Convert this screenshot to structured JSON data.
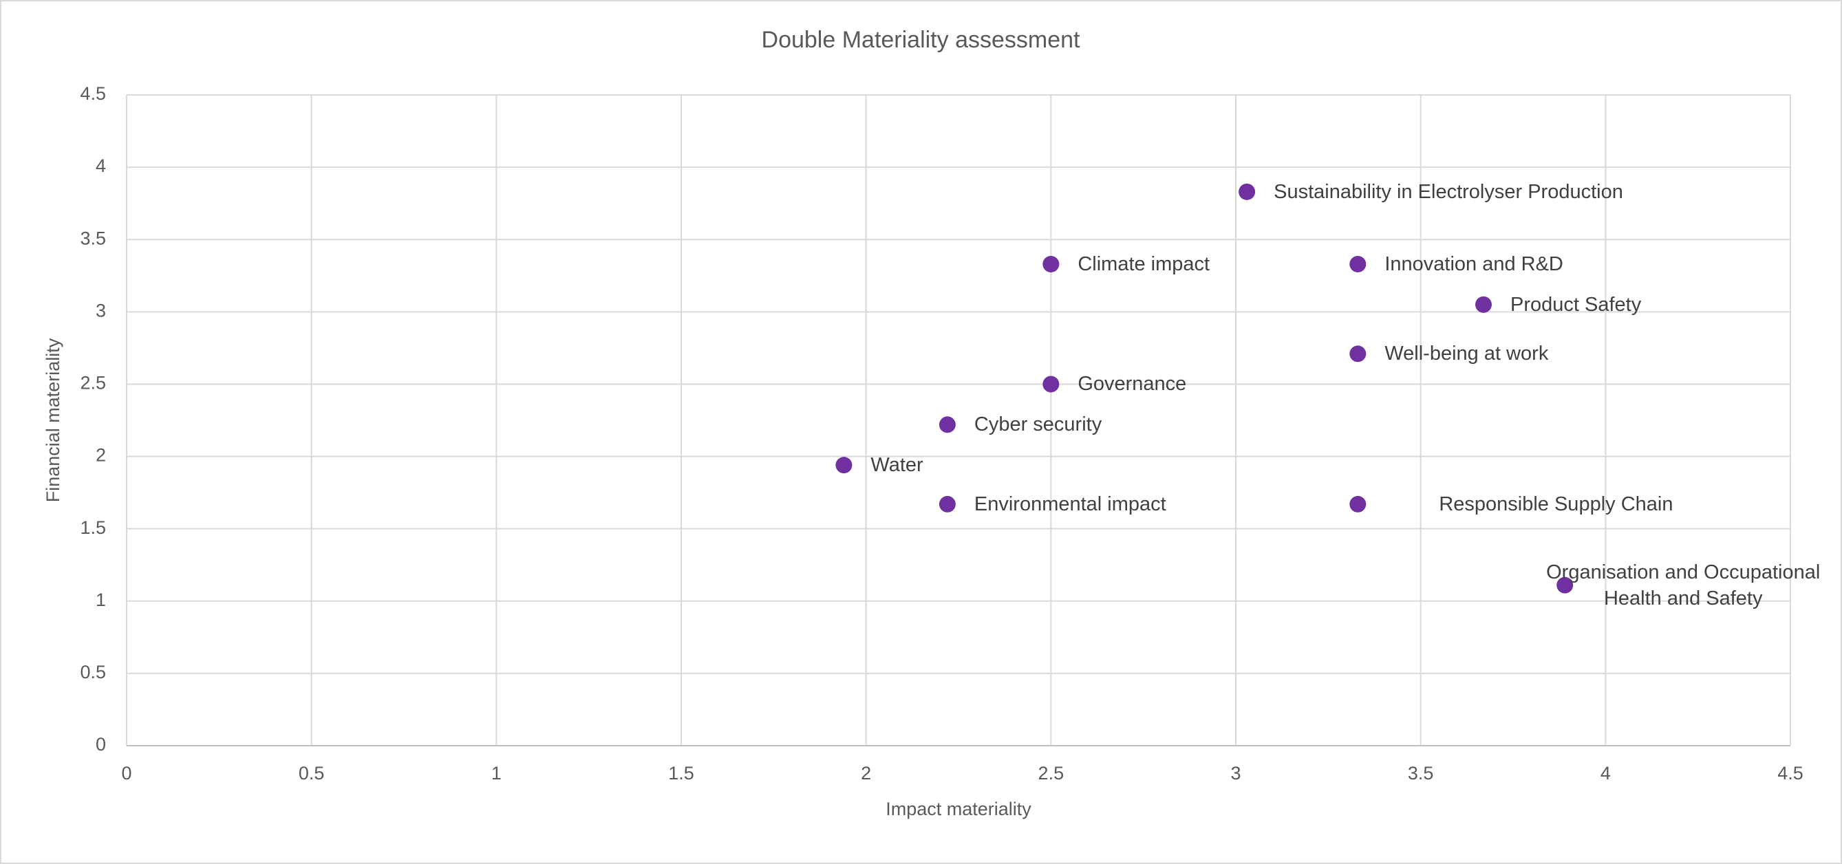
{
  "chart_data": {
    "type": "scatter",
    "title": "Double Materiality assessment",
    "x_label": "Impact materiality",
    "y_label": "Financial materiality",
    "color": "#7030a0",
    "grid": true,
    "xlim": [
      0,
      4.5
    ],
    "xticks": [
      0,
      0.5,
      1,
      1.5,
      2,
      2.5,
      3,
      3.5,
      4,
      4.5
    ],
    "ylim": [
      0,
      4.5
    ],
    "yticks": [
      0,
      0.5,
      1,
      1.5,
      2,
      2.5,
      3,
      3.5,
      4,
      4.5
    ],
    "labels": [
      "Sustainability in Electrolyser Production",
      "Climate impact",
      "Innovation and R&D",
      "Product Safety",
      "Well-being at work",
      "Governance",
      "Cyber security",
      "Water",
      "Environmental impact",
      "Responsible Supply Chain",
      "Organisation and Occupational Health and Safety"
    ],
    "x": [
      3.03,
      2.5,
      3.33,
      3.67,
      3.33,
      2.5,
      2.22,
      1.94,
      2.22,
      3.33,
      3.89
    ],
    "values": [
      3.83,
      3.33,
      3.33,
      3.05,
      2.71,
      2.5,
      2.22,
      1.94,
      1.67,
      1.67,
      1.11
    ]
  }
}
